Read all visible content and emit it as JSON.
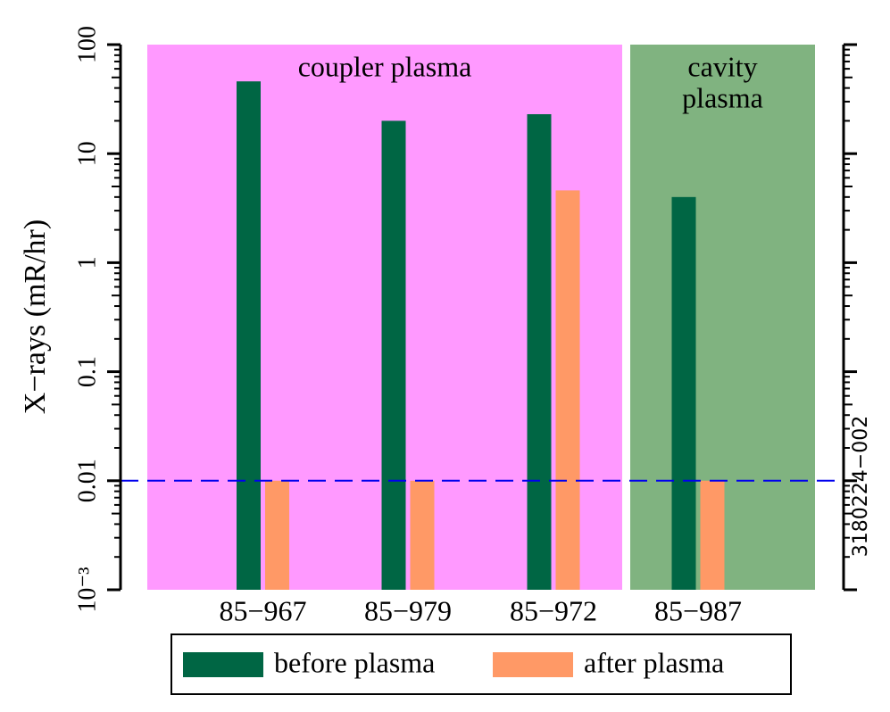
{
  "chart_data": {
    "type": "bar",
    "y_label": "X−rays (mR/hr)",
    "log_scale": true,
    "categories": [
      "85−967",
      "85−979",
      "85−972",
      "85−987"
    ],
    "series": [
      {
        "name": "before plasma",
        "color": "#006644",
        "values": [
          46,
          20,
          23,
          4
        ]
      },
      {
        "name": "after plasma",
        "color": "#ff9966",
        "values": [
          0.01,
          0.01,
          4.6,
          0.01
        ]
      }
    ],
    "ylim": [
      0.001,
      100
    ],
    "yticks": [
      {
        "value": 0.001,
        "label": "10⁻³"
      },
      0.01,
      0.1,
      1,
      10,
      100
    ],
    "regions": [
      {
        "lines": [
          "coupler plasma"
        ],
        "color": "#ff99ff"
      },
      {
        "lines": [
          "cavity",
          "plasma"
        ],
        "color": "#80b380"
      }
    ],
    "reference_line": {
      "value": 0.01,
      "color": "#0000ee"
    },
    "figure_id": "3180224−002",
    "legend": "bottom"
  }
}
